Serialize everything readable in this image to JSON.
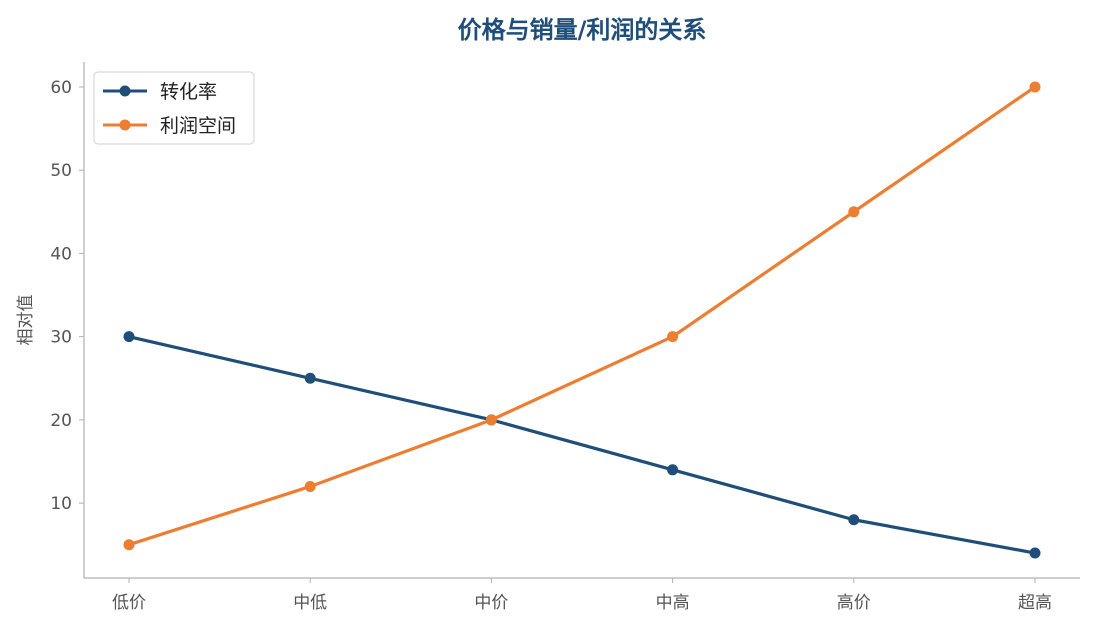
{
  "chart_data": {
    "type": "line",
    "title": "价格与销量/利润的关系",
    "xlabel": "",
    "ylabel": "相对值",
    "categories": [
      "低价",
      "中低",
      "中价",
      "中高",
      "高价",
      "超高"
    ],
    "ylim": [
      1,
      63
    ],
    "yticks": [
      10,
      20,
      30,
      40,
      50,
      60
    ],
    "grid": false,
    "legend_position": "top-left",
    "series": [
      {
        "name": "转化率",
        "values": [
          30,
          25,
          20,
          14,
          8,
          4
        ],
        "color": "#1f4e79"
      },
      {
        "name": "利润空间",
        "values": [
          5,
          12,
          20,
          30,
          45,
          60
        ],
        "color": "#ed7d31"
      }
    ],
    "title_color": "#1f4e79",
    "axis_color": "#b0b0b0"
  }
}
